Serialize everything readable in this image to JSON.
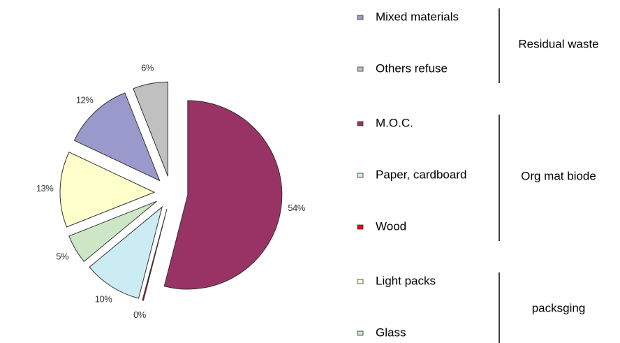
{
  "chart_data": {
    "type": "pie",
    "categories": [
      "M.O.C.",
      "Wood",
      "Paper, cardboard",
      "Glass",
      "Light packs",
      "Mixed materials",
      "Others refuse"
    ],
    "values": [
      54,
      0,
      10,
      5,
      13,
      12,
      6
    ],
    "value_labels": [
      "54%",
      "0%",
      "10%",
      "5%",
      "13%",
      "12%",
      "6%"
    ],
    "colors": [
      "#993366",
      "#ff0000",
      "#ccecf4",
      "#cce6c6",
      "#ffffcc",
      "#9999cc",
      "#c0c0c0"
    ],
    "legend": {
      "position": "right",
      "groups": [
        {
          "name": "Residual waste",
          "items": [
            "Mixed materials",
            "Others refuse"
          ]
        },
        {
          "name": "Org mat biode",
          "items": [
            "M.O.C.",
            "Paper, cardboard",
            "Wood"
          ]
        },
        {
          "name": "packsging",
          "items": [
            "Light packs",
            "Glass"
          ]
        }
      ]
    }
  }
}
